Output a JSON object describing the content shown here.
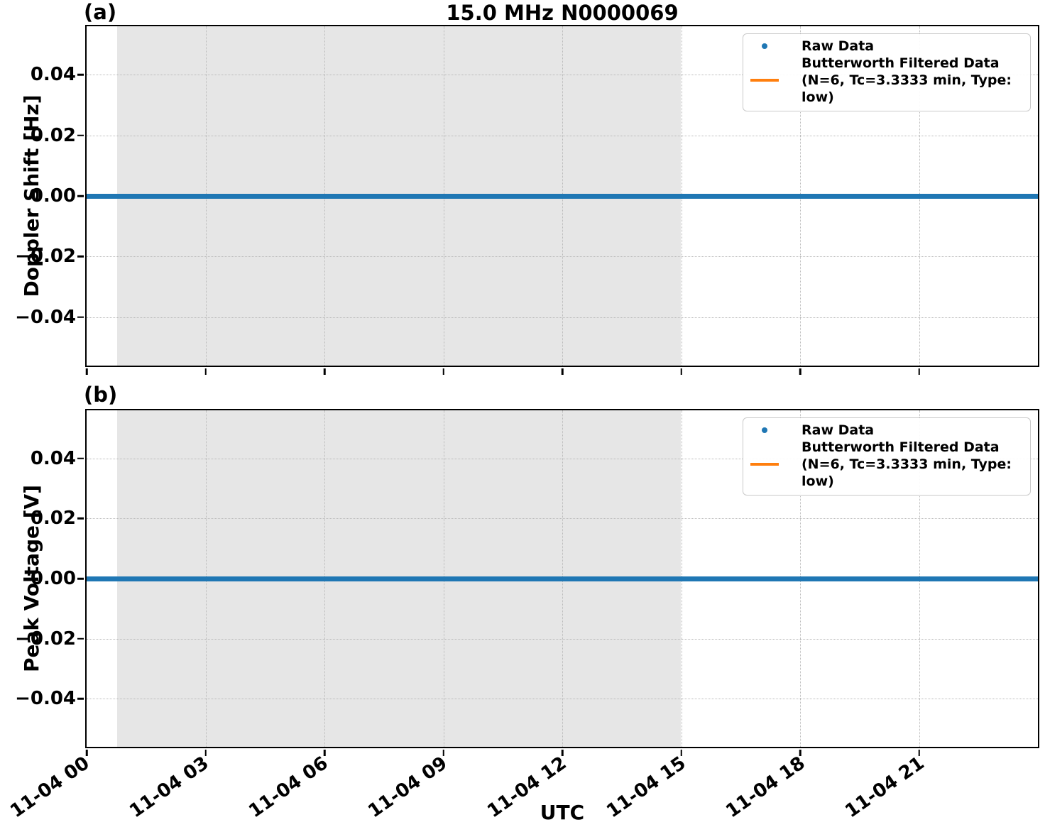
{
  "title": "15.0 MHz N0000069",
  "xlabel": "UTC",
  "panels": [
    {
      "label": "(a)",
      "ylabel": "Doppler Shift [Hz]"
    },
    {
      "label": "(b)",
      "ylabel": "Peak Voltage [V]"
    }
  ],
  "legend": {
    "raw": "Raw Data",
    "filtered_line1": "Butterworth Filtered Data",
    "filtered_line2": "(N=6, Tc=3.3333 min, Type: low)"
  },
  "colors": {
    "raw": "#1f77b4",
    "filtered": "#ff7f0e",
    "shade": "#e6e6e6",
    "grid": "#b9b9b9",
    "spine": "#000000"
  },
  "chart_data": [
    {
      "type": "line",
      "panel_label": "(a)",
      "title": "15.0 MHz N0000069",
      "xlabel": "UTC",
      "ylabel": "Doppler Shift [Hz]",
      "x_tick_labels": [
        "11-04 00",
        "11-04 03",
        "11-04 06",
        "11-04 09",
        "11-04 12",
        "11-04 15",
        "11-04 18",
        "11-04 21"
      ],
      "x_tick_hours": [
        0,
        3,
        6,
        9,
        12,
        15,
        18,
        21
      ],
      "xlim_hours": [
        0,
        24
      ],
      "y_ticks": [
        0.04,
        0.02,
        0.0,
        -0.02,
        -0.04
      ],
      "y_tick_labels": [
        "0.04",
        "0.02",
        "0.00",
        "−0.02",
        "−0.04"
      ],
      "ylim": [
        -0.056,
        0.056
      ],
      "grid": "dotted",
      "legend_position": "upper right",
      "series": [
        {
          "name": "Raw Data",
          "style": "scatter",
          "color": "#1f77b4",
          "y_constant": 0.0,
          "x_span_hours": [
            0,
            24
          ]
        },
        {
          "name": "Butterworth Filtered Data (N=6, Tc=3.3333 min, Type: low)",
          "style": "line",
          "color": "#ff7f0e",
          "y_constant": 0.0,
          "x_span_hours": [
            0,
            24
          ],
          "note": "hidden beneath raw data at 0.00"
        }
      ],
      "shaded_span_hours": [
        0.77,
        15.0
      ],
      "shaded_span_labels": [
        "11-04 00:46",
        "11-04 15:00"
      ]
    },
    {
      "type": "line",
      "panel_label": "(b)",
      "title": "",
      "xlabel": "UTC",
      "ylabel": "Peak Voltage [V]",
      "x_tick_labels": [
        "11-04 00",
        "11-04 03",
        "11-04 06",
        "11-04 09",
        "11-04 12",
        "11-04 15",
        "11-04 18",
        "11-04 21"
      ],
      "x_tick_hours": [
        0,
        3,
        6,
        9,
        12,
        15,
        18,
        21
      ],
      "xlim_hours": [
        0,
        24
      ],
      "y_ticks": [
        0.04,
        0.02,
        0.0,
        -0.02,
        -0.04
      ],
      "y_tick_labels": [
        "0.04",
        "0.02",
        "0.00",
        "−0.02",
        "−0.04"
      ],
      "ylim": [
        -0.056,
        0.056
      ],
      "grid": "dotted",
      "legend_position": "upper right",
      "series": [
        {
          "name": "Raw Data",
          "style": "scatter",
          "color": "#1f77b4",
          "y_constant": 0.0,
          "x_span_hours": [
            0,
            24
          ]
        },
        {
          "name": "Butterworth Filtered Data (N=6, Tc=3.3333 min, Type: low)",
          "style": "line",
          "color": "#ff7f0e",
          "y_constant": 0.0,
          "x_span_hours": [
            0,
            24
          ],
          "note": "hidden beneath raw data at 0.00"
        }
      ],
      "shaded_span_hours": [
        0.77,
        15.0
      ],
      "shaded_span_labels": [
        "11-04 00:46",
        "11-04 15:00"
      ]
    }
  ]
}
